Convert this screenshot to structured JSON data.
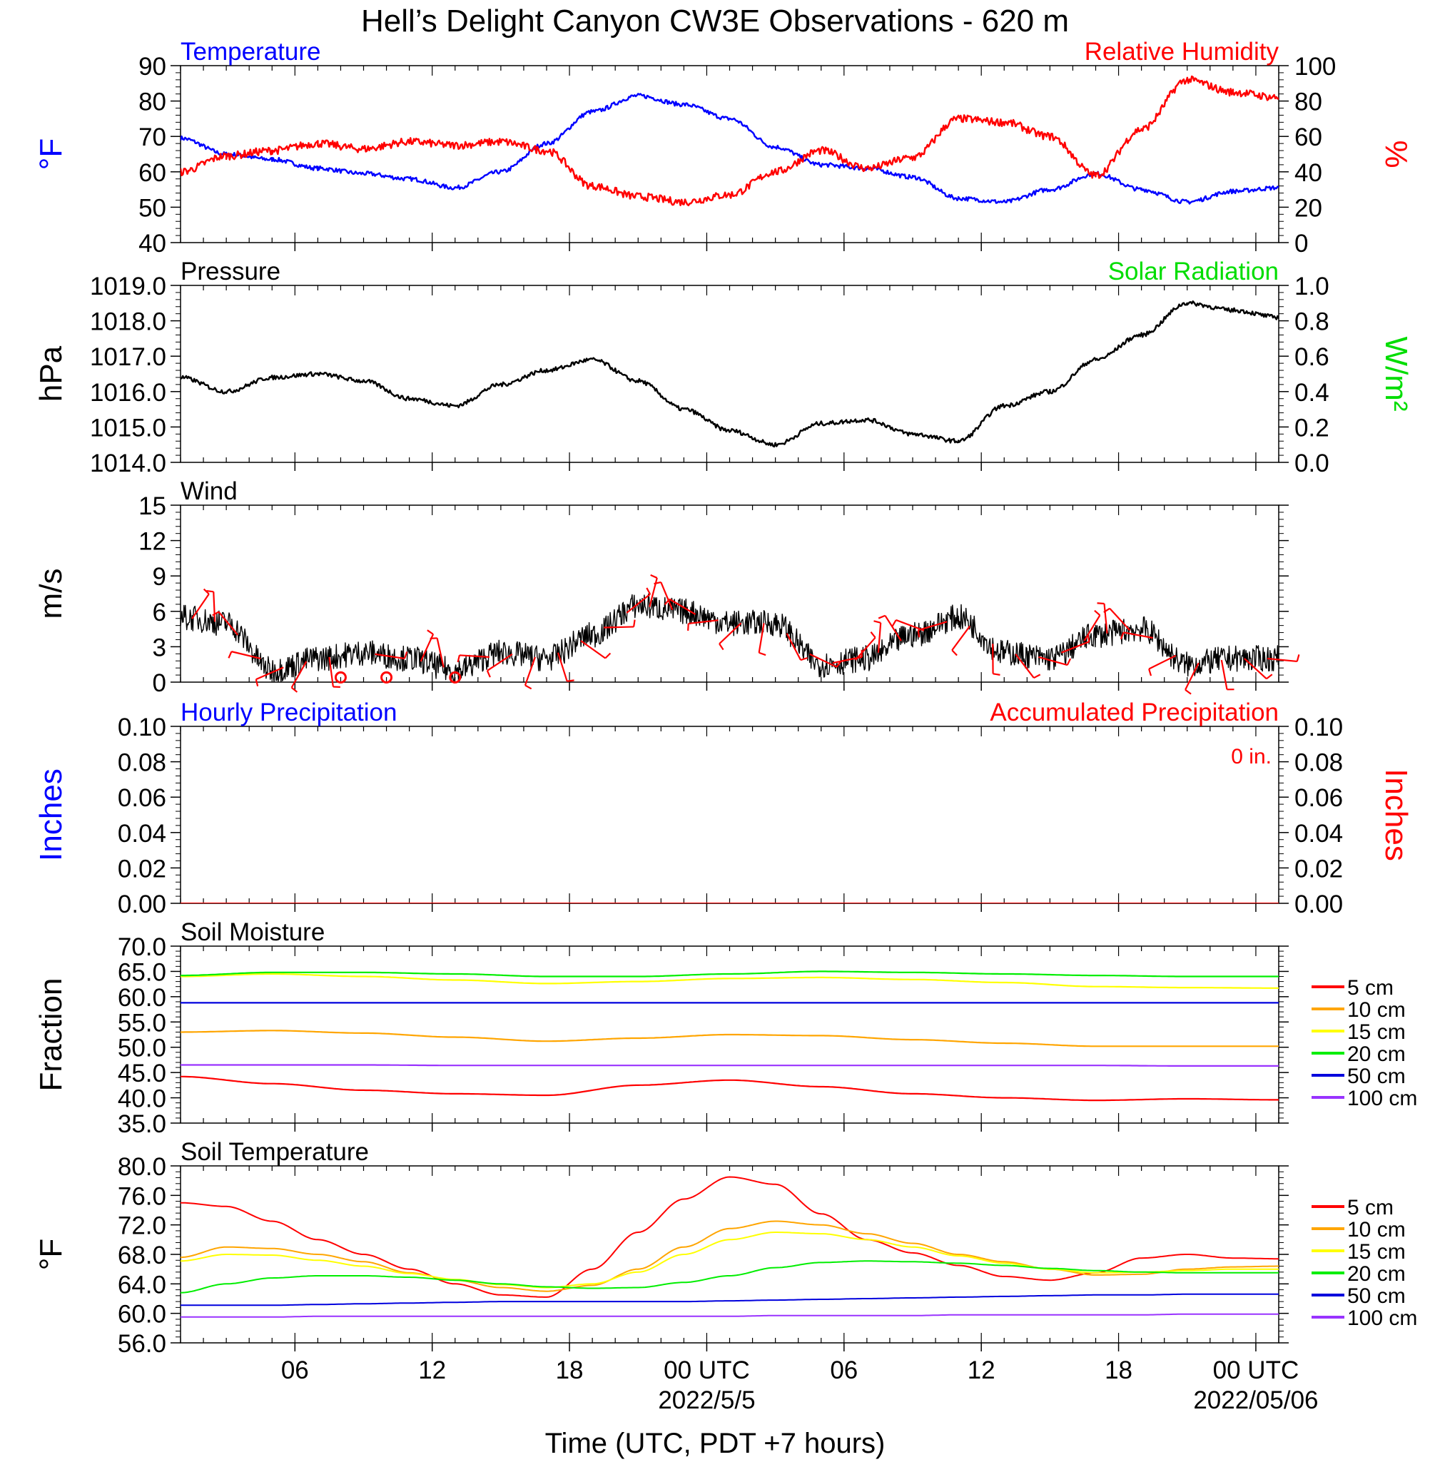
{
  "title": "Hell’s Delight Canyon CW3E Observations - 620 m",
  "xlabel": "Time (UTC, PDT +7 hours)",
  "x_axis": {
    "tick_labels": [
      "06",
      "12",
      "18",
      "00 UTC",
      "06",
      "12",
      "18",
      "00 UTC"
    ],
    "tick_hours": [
      6,
      12,
      18,
      24,
      30,
      36,
      42,
      48
    ],
    "date_labels": [
      "2022/5/5",
      "2022/05/06"
    ],
    "date_hours": [
      24,
      48
    ],
    "range_hours": [
      1,
      49
    ]
  },
  "colors": {
    "temperature": "#0000ff",
    "humidity": "#ff0000",
    "pressure": "#000000",
    "solar": "#00dd00",
    "wind": "#000000",
    "barb": "#ff0000",
    "hourly_precip": "#0000ff",
    "accum_precip": "#ff0000",
    "depth_5": "#ff0000",
    "depth_10": "#ffa500",
    "depth_15": "#ffff00",
    "depth_20": "#00ee00",
    "depth_50": "#0000dd",
    "depth_100": "#9933ff"
  },
  "chart_data": [
    {
      "id": "temp-rh",
      "type": "line",
      "title_left": "Temperature",
      "title_right": "Relative Humidity",
      "ylabel_left": "°F",
      "ylabel_right": "%",
      "ylim_left": [
        40,
        90
      ],
      "ylim_right": [
        0,
        100
      ],
      "yticks_left": [
        "90",
        "80",
        "70",
        "60",
        "50",
        "40"
      ],
      "yticks_right": [
        "100",
        "80",
        "60",
        "40",
        "20",
        "0"
      ],
      "x": [
        1,
        3,
        5,
        7,
        9,
        11,
        13,
        15,
        17,
        19,
        21,
        23,
        25,
        27,
        29,
        31,
        33,
        35,
        37,
        39,
        41,
        43,
        45,
        47,
        49
      ],
      "series": [
        {
          "name": "Temperature",
          "axis": "left",
          "values": [
            69.5,
            65,
            63.5,
            61,
            59.5,
            58,
            55.5,
            60,
            68,
            77,
            81.5,
            79,
            75,
            67,
            62,
            61,
            58.5,
            52.5,
            51.5,
            55,
            59.5,
            55,
            51.5,
            54.5,
            55.5
          ]
        },
        {
          "name": "Relative Humidity",
          "axis": "right",
          "values": [
            40,
            49,
            52,
            56,
            53,
            57,
            55,
            57,
            52,
            32,
            26,
            23,
            27,
            40,
            52,
            42,
            48,
            70,
            68,
            60,
            38,
            64,
            92,
            85,
            82
          ]
        }
      ]
    },
    {
      "id": "pressure",
      "type": "line",
      "title_left": "Pressure",
      "title_right": "Solar Radiation",
      "ylabel_left": "hPa",
      "ylabel_right": "W/m²",
      "ylim_left": [
        1014.0,
        1019.0
      ],
      "ylim_right": [
        0.0,
        1.0
      ],
      "yticks_left": [
        "1019.0",
        "1018.0",
        "1017.0",
        "1016.0",
        "1015.0",
        "1014.0"
      ],
      "yticks_right": [
        "1.0",
        "0.8",
        "0.6",
        "0.4",
        "0.2",
        "0.0"
      ],
      "x": [
        1,
        3,
        5,
        7,
        9,
        11,
        13,
        15,
        17,
        19,
        21,
        23,
        25,
        27,
        29,
        31,
        33,
        35,
        37,
        39,
        41,
        43,
        45,
        47,
        49
      ],
      "series": [
        {
          "name": "Pressure",
          "axis": "left",
          "values": [
            1016.4,
            1016.0,
            1016.4,
            1016.5,
            1016.3,
            1015.8,
            1015.6,
            1016.2,
            1016.6,
            1016.9,
            1016.3,
            1015.5,
            1014.9,
            1014.5,
            1015.1,
            1015.2,
            1014.8,
            1014.6,
            1015.6,
            1016.0,
            1016.9,
            1017.6,
            1018.5,
            1018.3,
            1018.1
          ]
        }
      ]
    },
    {
      "id": "wind",
      "type": "line",
      "title_left": "Wind",
      "ylabel_left": "m/s",
      "ylim_left": [
        0,
        15
      ],
      "yticks_left": [
        "15",
        "12",
        "9",
        "6",
        "3",
        "0"
      ],
      "x": [
        1,
        3,
        5,
        7,
        9,
        11,
        13,
        15,
        17,
        19,
        21,
        23,
        25,
        27,
        29,
        31,
        33,
        35,
        37,
        39,
        41,
        43,
        45,
        47,
        49
      ],
      "series": [
        {
          "name": "Wind speed",
          "axis": "left",
          "values": [
            5.5,
            5,
            1,
            2,
            2.5,
            2,
            1,
            2.5,
            2,
            4,
            6.5,
            6,
            5,
            5,
            1.5,
            2,
            4,
            5.5,
            2.5,
            2,
            4,
            4.5,
            1.5,
            2,
            2
          ]
        }
      ],
      "calm_hours": [
        8,
        10,
        13
      ]
    },
    {
      "id": "precip",
      "type": "line",
      "title_left": "Hourly Precipitation",
      "title_right": "Accumulated Precipitation",
      "annotation": "0 in.",
      "ylabel_left": "Inches",
      "ylabel_right": "Inches",
      "ylim_left": [
        0.0,
        0.1
      ],
      "ylim_right": [
        0.0,
        0.1
      ],
      "yticks_left": [
        "0.10",
        "0.08",
        "0.06",
        "0.04",
        "0.02",
        "0.00"
      ],
      "yticks_right": [
        "0.10",
        "0.08",
        "0.06",
        "0.04",
        "0.02",
        "0.00"
      ],
      "x": [
        1,
        49
      ],
      "series": [
        {
          "name": "Hourly Precipitation",
          "axis": "left",
          "values": [
            0,
            0
          ]
        },
        {
          "name": "Accumulated Precipitation",
          "axis": "right",
          "values": [
            0,
            0
          ]
        }
      ]
    },
    {
      "id": "soil-moisture",
      "type": "line",
      "title_left": "Soil Moisture",
      "ylabel_left": "Fraction",
      "ylim_left": [
        35.0,
        70.0
      ],
      "yticks_left": [
        "70.0",
        "65.0",
        "60.0",
        "55.0",
        "50.0",
        "45.0",
        "40.0",
        "35.0"
      ],
      "legend": [
        "5 cm",
        "10 cm",
        "15 cm",
        "20 cm",
        "50 cm",
        "100 cm"
      ],
      "x": [
        1,
        5,
        9,
        13,
        17,
        21,
        25,
        29,
        33,
        37,
        41,
        45,
        49
      ],
      "series": [
        {
          "name": "5 cm",
          "values": [
            44.2,
            42.8,
            41.5,
            40.8,
            40.5,
            42.5,
            43.5,
            42.2,
            40.8,
            40.0,
            39.5,
            39.8,
            39.6
          ]
        },
        {
          "name": "10 cm",
          "values": [
            53.0,
            53.3,
            52.8,
            52.0,
            51.2,
            51.8,
            52.5,
            52.3,
            51.5,
            50.8,
            50.2,
            50.2,
            50.2
          ]
        },
        {
          "name": "15 cm",
          "values": [
            64.0,
            64.5,
            64.0,
            63.3,
            62.6,
            63.0,
            63.6,
            63.8,
            63.4,
            62.8,
            62.0,
            61.8,
            61.7
          ]
        },
        {
          "name": "20 cm",
          "values": [
            64.2,
            64.8,
            64.8,
            64.5,
            64.0,
            64.0,
            64.5,
            65.0,
            64.8,
            64.5,
            64.2,
            64.0,
            64.0
          ]
        },
        {
          "name": "50 cm",
          "values": [
            58.8,
            58.8,
            58.8,
            58.8,
            58.8,
            58.8,
            58.8,
            58.8,
            58.8,
            58.8,
            58.8,
            58.8,
            58.8
          ]
        },
        {
          "name": "100 cm",
          "values": [
            46.5,
            46.5,
            46.5,
            46.4,
            46.4,
            46.4,
            46.4,
            46.4,
            46.4,
            46.4,
            46.4,
            46.3,
            46.3
          ]
        }
      ]
    },
    {
      "id": "soil-temp",
      "type": "line",
      "title_left": "Soil Temperature",
      "ylabel_left": "°F",
      "ylim_left": [
        56.0,
        80.0
      ],
      "yticks_left": [
        "80.0",
        "76.0",
        "72.0",
        "68.0",
        "64.0",
        "60.0",
        "56.0"
      ],
      "legend": [
        "5 cm",
        "10 cm",
        "15 cm",
        "20 cm",
        "50 cm",
        "100 cm"
      ],
      "x": [
        1,
        3,
        5,
        7,
        9,
        11,
        13,
        15,
        17,
        19,
        21,
        23,
        25,
        27,
        29,
        31,
        33,
        35,
        37,
        39,
        41,
        43,
        45,
        47,
        49
      ],
      "series": [
        {
          "name": "5 cm",
          "values": [
            75,
            74.5,
            72.5,
            70,
            68,
            66,
            64,
            62.5,
            62.2,
            66,
            71,
            75.5,
            78.5,
            77.5,
            73.5,
            70,
            68.2,
            66.5,
            65,
            64.5,
            65.5,
            67.5,
            68,
            67.5,
            67.4
          ]
        },
        {
          "name": "10 cm",
          "values": [
            67.6,
            69,
            68.8,
            68,
            67,
            65.5,
            64.5,
            63.5,
            63,
            63.8,
            66,
            69,
            71.5,
            72.5,
            72,
            70.8,
            69.5,
            68,
            67,
            66,
            65.2,
            65.3,
            66.0,
            66.3,
            66.4
          ]
        },
        {
          "name": "15 cm",
          "values": [
            67.1,
            68,
            67.9,
            67.2,
            66.4,
            65.4,
            64.6,
            63.9,
            63.5,
            64.0,
            65.6,
            68.0,
            70.0,
            71.0,
            70.8,
            70.0,
            69.0,
            67.8,
            66.8,
            66.0,
            65.5,
            65.6,
            65.8,
            66.0,
            66.0
          ]
        },
        {
          "name": "20 cm",
          "values": [
            62.8,
            64.0,
            64.8,
            65.1,
            65.1,
            64.9,
            64.5,
            64.0,
            63.6,
            63.4,
            63.5,
            64.2,
            65.1,
            66.2,
            66.9,
            67.1,
            67.0,
            66.8,
            66.5,
            66.1,
            65.8,
            65.6,
            65.5,
            65.5,
            65.5
          ]
        },
        {
          "name": "50 cm",
          "values": [
            61.1,
            61.1,
            61.1,
            61.2,
            61.3,
            61.4,
            61.5,
            61.6,
            61.6,
            61.6,
            61.6,
            61.6,
            61.7,
            61.8,
            61.9,
            62.0,
            62.1,
            62.2,
            62.3,
            62.4,
            62.5,
            62.5,
            62.6,
            62.6,
            62.6
          ]
        },
        {
          "name": "100 cm",
          "values": [
            59.5,
            59.5,
            59.5,
            59.6,
            59.6,
            59.6,
            59.6,
            59.6,
            59.6,
            59.6,
            59.6,
            59.6,
            59.6,
            59.7,
            59.7,
            59.7,
            59.7,
            59.8,
            59.8,
            59.8,
            59.8,
            59.8,
            59.9,
            59.9,
            59.9
          ]
        }
      ]
    }
  ]
}
